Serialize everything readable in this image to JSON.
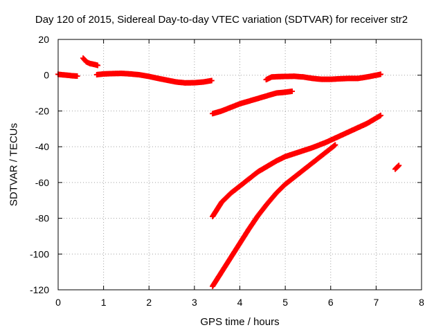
{
  "chart_data": {
    "type": "scatter",
    "title": "Day 120 of 2015, Sidereal Day-to-day VTEC variation (SDTVAR) for receiver str2",
    "xlabel": "GPS time / hours",
    "ylabel": "SDTVAR / TECUs",
    "xlim": [
      0,
      8
    ],
    "ylim": [
      -120,
      20
    ],
    "xticks": [
      "0",
      "1",
      "2",
      "3",
      "4",
      "5",
      "6",
      "7",
      "8"
    ],
    "yticks": [
      "-120",
      "-100",
      "-80",
      "-60",
      "-40",
      "-20",
      "0",
      "20"
    ],
    "grid": true,
    "marker": "plus",
    "color": "#ff0000",
    "series": [
      {
        "x": [
          0.0,
          0.1,
          0.2,
          0.3,
          0.42
        ],
        "y": [
          0.5,
          0.2,
          0.0,
          -0.3,
          -0.5
        ]
      },
      {
        "x": [
          0.55,
          0.62,
          0.7,
          0.8,
          0.87
        ],
        "y": [
          9.5,
          7.5,
          6.5,
          6.0,
          5.5
        ]
      },
      {
        "x": [
          0.85,
          1.0,
          1.2,
          1.4,
          1.6,
          1.8,
          2.0,
          2.2,
          2.4,
          2.6,
          2.8,
          3.0,
          3.2,
          3.38
        ],
        "y": [
          0.3,
          0.7,
          0.9,
          1.0,
          0.7,
          0.2,
          -0.7,
          -1.8,
          -2.8,
          -3.8,
          -4.3,
          -4.2,
          -3.8,
          -3.0
        ]
      },
      {
        "x": [
          4.58,
          4.7,
          4.85,
          5.0,
          5.2,
          5.4,
          5.6,
          5.8,
          6.0,
          6.2,
          6.4,
          6.6,
          6.8,
          7.0,
          7.1
        ],
        "y": [
          -2.5,
          -1.0,
          -0.8,
          -0.7,
          -0.6,
          -1.0,
          -1.8,
          -2.3,
          -2.3,
          -2.0,
          -1.8,
          -1.8,
          -1.0,
          0.0,
          0.5
        ]
      },
      {
        "x": [
          3.4,
          3.6,
          3.8,
          4.0,
          4.2,
          4.4,
          4.6,
          4.8,
          5.0,
          5.15
        ],
        "y": [
          -21.5,
          -20.0,
          -18.0,
          -16.0,
          -14.5,
          -13.0,
          -11.5,
          -10.0,
          -9.5,
          -9.0
        ]
      },
      {
        "x": [
          3.4,
          3.5,
          3.6,
          3.8,
          4.0,
          4.2,
          4.4,
          4.6,
          4.8,
          5.0,
          5.3,
          5.6,
          5.9,
          6.2,
          6.5,
          6.8,
          7.1
        ],
        "y": [
          -79,
          -75,
          -71,
          -66,
          -62,
          -58,
          -54,
          -51,
          -48,
          -45.5,
          -43,
          -40.5,
          -37.5,
          -34,
          -30.5,
          -27,
          -22.5
        ]
      },
      {
        "x": [
          3.4,
          3.5,
          3.6,
          3.8,
          4.0,
          4.2,
          4.4,
          4.6,
          4.8,
          5.0,
          5.2,
          5.4,
          5.6,
          5.8,
          6.1
        ],
        "y": [
          -118,
          -114,
          -110,
          -102,
          -94,
          -86,
          -78.5,
          -72,
          -66,
          -61,
          -57,
          -53,
          -49,
          -45,
          -39
        ]
      },
      {
        "x": [
          7.42,
          7.5
        ],
        "y": [
          -52.5,
          -50.5
        ]
      }
    ]
  }
}
